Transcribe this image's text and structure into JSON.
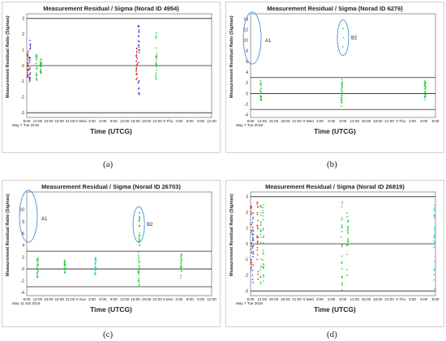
{
  "chart_data": [
    {
      "panel": "a",
      "type": "scatter",
      "title": "Measurement Residual / Sigma (Norad ID 4954)",
      "xlabel": "Time (UTCG)",
      "ylabel": "Measurement Residual Ratio (Sigmas)",
      "date_label": "May 7 Tue 2019",
      "caption": "(a)",
      "ylim": [
        -3.3,
        3.3
      ],
      "yticks": [
        "3",
        "2",
        "1",
        "0",
        "-1",
        "-2",
        "-3"
      ],
      "ytick_values": [
        3,
        2,
        1,
        0,
        -1,
        -2,
        -3
      ],
      "xticks": [
        "9:00",
        "12:00",
        "15:00",
        "18:00",
        "21:00",
        "0 Wed",
        "3:00",
        "6:00",
        "9:00",
        "12:00",
        "15:00",
        "18:00",
        "21:00",
        "0 Thu",
        "3:00",
        "6:00",
        "9:00",
        "12:00"
      ],
      "reference_lines": [
        3,
        0,
        -3
      ],
      "series": [
        {
          "color": "#2233dd",
          "x": [
            0.3,
            10.3
          ],
          "ymin": [
            -1.3,
            -2.4
          ],
          "ymax": [
            1.7,
            2.7
          ]
        },
        {
          "color": "#dd2222",
          "x": [
            0.1,
            10.1
          ],
          "ymin": [
            -0.8,
            -1.2
          ],
          "ymax": [
            1.0,
            1.2
          ]
        },
        {
          "color": "#22cc33",
          "x": [
            0.9,
            1.3,
            11.9
          ],
          "ymin": [
            -1.0,
            -0.5,
            -1.0
          ],
          "ymax": [
            0.7,
            0.4,
            2.2
          ]
        }
      ],
      "annotations": []
    },
    {
      "panel": "b",
      "type": "scatter",
      "title": "Measurement Residual / Sigma (Norad ID 6276)",
      "xlabel": "Time (UTCG)",
      "ylabel": "Measurement Residual Ratio (Sigmas)",
      "date_label": "May 7 Tue 2019",
      "caption": "(b)",
      "ylim": [
        -4.5,
        15
      ],
      "yticks": [
        "14",
        "12",
        "10",
        "8",
        "6",
        "4",
        "2",
        "0",
        "-2",
        "-4"
      ],
      "ytick_values": [
        14,
        12,
        10,
        8,
        6,
        4,
        2,
        0,
        -2,
        -4
      ],
      "xticks": [
        "9:00",
        "12:00",
        "15:00",
        "18:00",
        "21:00",
        "0 Wed",
        "3:00",
        "6:00",
        "9:00",
        "12:00",
        "15:00",
        "18:00",
        "21:00",
        "0 Thu",
        "3:00",
        "6:00",
        "9:00"
      ],
      "reference_lines": [
        3,
        0,
        -3
      ],
      "series": [
        {
          "color": "#22cc33",
          "x": [
            0.9,
            7.9,
            15.1
          ],
          "ymin": [
            -1.5,
            -2.5,
            -1.5
          ],
          "ymax": [
            2.5,
            2.8,
            2.5
          ]
        },
        {
          "color": "#22cc33",
          "x": [
            7.95,
            8.0,
            8.05
          ],
          "ymin": [
            8.8,
            10.5,
            12.2
          ],
          "ymax": [
            8.8,
            10.5,
            12.2
          ]
        }
      ],
      "annotations": [
        {
          "label": "A1",
          "x": 0.3,
          "y": 10
        },
        {
          "label": "B2",
          "x": 8.0,
          "y": 10.5
        }
      ]
    },
    {
      "panel": "c",
      "type": "scatter",
      "title": "Measurement Residual / Sigma (Norad ID 26703)",
      "xlabel": "Time (UTCG)",
      "ylabel": "Measurement Residual Ratio (Sigmas)",
      "date_label": "May 11 Sat 2019",
      "caption": "(c)",
      "ylim": [
        -4.5,
        13
      ],
      "yticks": [
        "10",
        "8",
        "6",
        "4",
        "2",
        "0",
        "-2",
        "-4"
      ],
      "ytick_values": [
        10,
        8,
        6,
        4,
        2,
        0,
        -2,
        -4
      ],
      "xticks": [
        "9:00",
        "12:00",
        "15:00",
        "18:00",
        "21:00",
        "0 Sun",
        "3:00",
        "6:00",
        "9:00",
        "12:00",
        "15:00",
        "18:00",
        "21:00",
        "0 Mon",
        "3:00",
        "6:00",
        "9:00",
        "12:00"
      ],
      "reference_lines": [
        3,
        0,
        -3
      ],
      "series": [
        {
          "color": "#22cc33",
          "x": [
            1.0,
            3.5,
            10.3,
            14.2
          ],
          "ymin": [
            -1.5,
            -0.8,
            -3.0,
            -1.5
          ],
          "ymax": [
            2.0,
            1.5,
            3.0,
            2.5
          ]
        },
        {
          "color": "#22cccc",
          "x": [
            6.3
          ],
          "ymin": [
            -1.0
          ],
          "ymax": [
            2.0
          ]
        },
        {
          "color": "#22cc33",
          "x": [
            10.35
          ],
          "ymin": [
            4.0
          ],
          "ymax": [
            9.5
          ]
        }
      ],
      "annotations": [
        {
          "label": "A1",
          "x": 0.3,
          "y": 8
        },
        {
          "label": "B2",
          "x": 10.3,
          "y": 7.5
        }
      ]
    },
    {
      "panel": "d",
      "type": "scatter",
      "title": "Measurement Residual / Sigma (Norad ID 26819)",
      "xlabel": "Time (UTCG)",
      "ylabel": "Measurement Residual Ratio (Sigmas)",
      "date_label": "May 7 Tue 2019",
      "caption": "(d)",
      "ylim": [
        -3.3,
        3.3
      ],
      "yticks": [
        "3",
        "2",
        "1",
        "0",
        "-1",
        "-2",
        "-3"
      ],
      "ytick_values": [
        3,
        2,
        1,
        0,
        -1,
        -2,
        -3
      ],
      "xticks": [
        "9:00",
        "12:00",
        "15:00",
        "18:00",
        "21:00",
        "0 Wed",
        "3:00",
        "6:00",
        "9:00",
        "12:00",
        "15:00",
        "18:00",
        "21:00",
        "0 Thu",
        "3:00",
        "6:00",
        "9:00"
      ],
      "reference_lines": [
        3,
        0,
        -3
      ],
      "series": [
        {
          "color": "#dd2222",
          "x": [
            0.05,
            0.6
          ],
          "ymin": [
            -2.0,
            -2.5
          ],
          "ymax": [
            2.5,
            2.9
          ]
        },
        {
          "color": "#2233dd",
          "x": [
            0.2
          ],
          "ymin": [
            -2.8
          ],
          "ymax": [
            2.0
          ]
        },
        {
          "color": "#22cc33",
          "x": [
            0.9,
            1.1,
            7.9,
            8.4
          ],
          "ymin": [
            -2.6,
            -2.6,
            -3.2,
            -2.0
          ],
          "ymax": [
            2.8,
            2.7,
            3.1,
            2.0
          ]
        },
        {
          "color": "#22cccc",
          "x": [
            15.9
          ],
          "ymin": [
            -3.0
          ],
          "ymax": [
            2.5
          ]
        }
      ],
      "annotations": []
    }
  ]
}
